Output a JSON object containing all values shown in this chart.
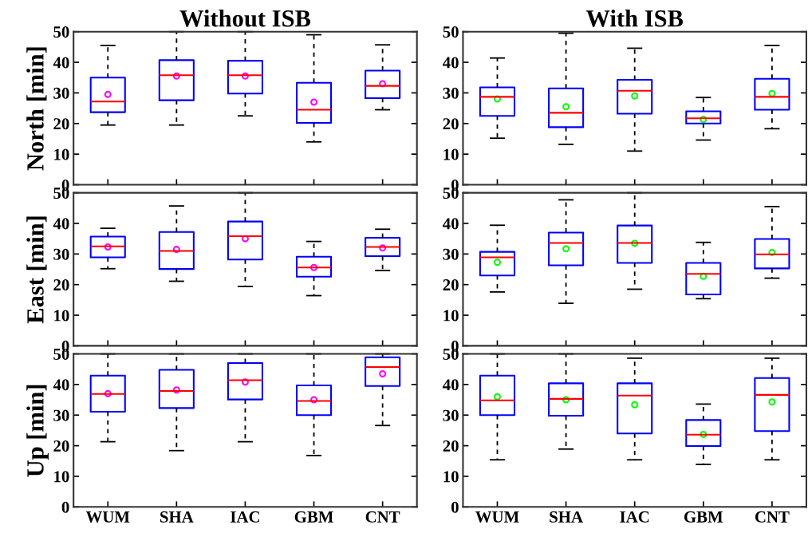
{
  "chart_data": [
    {
      "type": "box",
      "title": "Without ISB",
      "ylabel": "North [min]",
      "categories": [
        "WUM",
        "SHA",
        "IAC",
        "GBM",
        "CNT"
      ],
      "ylim": [
        0,
        50
      ],
      "yticks": [
        0,
        10,
        20,
        30,
        40,
        50
      ],
      "tick_labels": "y",
      "grid": false,
      "legend": false,
      "series": [
        {
          "color": "#0000ff",
          "boxes": [
            {
              "low": 19.5,
              "q1": 23.7,
              "median": 27.2,
              "q3": 35,
              "high": 45.5
            },
            {
              "low": 19.5,
              "q1": 27.6,
              "median": 35.8,
              "q3": 40.7,
              "high": 50
            },
            {
              "low": 22.5,
              "q1": 29.8,
              "median": 35.8,
              "q3": 40.5,
              "high": 50
            },
            {
              "low": 14,
              "q1": 20.2,
              "median": 24.5,
              "q3": 33.3,
              "high": 49
            },
            {
              "low": 24.5,
              "q1": 28.3,
              "median": 32.3,
              "q3": 37.3,
              "high": 45.7
            }
          ]
        },
        {
          "type": "scatter",
          "marker": "circle",
          "color": "#ff00ff",
          "x": [
            "WUM",
            "SHA",
            "IAC",
            "GBM",
            "CNT"
          ],
          "values": [
            29.5,
            35.5,
            35.5,
            27,
            33
          ]
        }
      ]
    },
    {
      "type": "box",
      "title": "With ISB",
      "categories": [
        "WUM",
        "SHA",
        "IAC",
        "GBM",
        "CNT"
      ],
      "ylim": [
        0,
        50
      ],
      "yticks": [
        0,
        10,
        20,
        30,
        40,
        50
      ],
      "tick_labels": "y",
      "grid": false,
      "legend": false,
      "series": [
        {
          "color": "#0000ff",
          "boxes": [
            {
              "low": 15.2,
              "q1": 22.5,
              "median": 28.7,
              "q3": 31.8,
              "high": 41.4
            },
            {
              "low": 13.2,
              "q1": 18.8,
              "median": 23.5,
              "q3": 31.5,
              "high": 49.5
            },
            {
              "low": 11,
              "q1": 23.2,
              "median": 30.7,
              "q3": 34.3,
              "high": 44.6
            },
            {
              "low": 14.6,
              "q1": 20,
              "median": 21.7,
              "q3": 24,
              "high": 28.5
            },
            {
              "low": 18.3,
              "q1": 24.5,
              "median": 28.7,
              "q3": 34.6,
              "high": 45.5
            }
          ]
        },
        {
          "type": "scatter",
          "marker": "circle",
          "color": "#00ff00",
          "x": [
            "WUM",
            "SHA",
            "IAC",
            "GBM",
            "CNT"
          ],
          "values": [
            28,
            25.5,
            29,
            21.3,
            29.8
          ]
        }
      ]
    },
    {
      "type": "box",
      "ylabel": "East [min]",
      "categories": [
        "WUM",
        "SHA",
        "IAC",
        "GBM",
        "CNT"
      ],
      "ylim": [
        0,
        50
      ],
      "yticks": [
        0,
        10,
        20,
        30,
        40,
        50
      ],
      "tick_labels": "y",
      "grid": false,
      "legend": false,
      "series": [
        {
          "color": "#0000ff",
          "boxes": [
            {
              "low": 25.2,
              "q1": 28.9,
              "median": 32.5,
              "q3": 35.7,
              "high": 38.4
            },
            {
              "low": 21.1,
              "q1": 25.1,
              "median": 31,
              "q3": 37.2,
              "high": 45.7
            },
            {
              "low": 19.4,
              "q1": 28.2,
              "median": 35.8,
              "q3": 40.6,
              "high": 50
            },
            {
              "low": 16.4,
              "q1": 22.6,
              "median": 25.6,
              "q3": 29.1,
              "high": 34.1
            },
            {
              "low": 24.6,
              "q1": 29.3,
              "median": 32.3,
              "q3": 35.3,
              "high": 38.1
            }
          ]
        },
        {
          "type": "scatter",
          "marker": "circle",
          "color": "#ff00ff",
          "x": [
            "WUM",
            "SHA",
            "IAC",
            "GBM",
            "CNT"
          ],
          "values": [
            32.3,
            31.5,
            35,
            25.6,
            32
          ]
        }
      ]
    },
    {
      "type": "box",
      "categories": [
        "WUM",
        "SHA",
        "IAC",
        "GBM",
        "CNT"
      ],
      "ylim": [
        0,
        50
      ],
      "yticks": [
        0,
        10,
        20,
        30,
        40,
        50
      ],
      "tick_labels": "y",
      "grid": false,
      "legend": false,
      "series": [
        {
          "color": "#0000ff",
          "boxes": [
            {
              "low": 17.6,
              "q1": 23,
              "median": 28.9,
              "q3": 30.7,
              "high": 39.4
            },
            {
              "low": 13.9,
              "q1": 26.3,
              "median": 33.6,
              "q3": 37,
              "high": 47.7
            },
            {
              "low": 18.5,
              "q1": 27.1,
              "median": 33.6,
              "q3": 39.3,
              "high": 50
            },
            {
              "low": 15.4,
              "q1": 16.8,
              "median": 23.5,
              "q3": 27.1,
              "high": 33.8
            },
            {
              "low": 22.1,
              "q1": 25.3,
              "median": 29.9,
              "q3": 34.9,
              "high": 45.5
            }
          ]
        },
        {
          "type": "scatter",
          "marker": "circle",
          "color": "#00ff00",
          "x": [
            "WUM",
            "SHA",
            "IAC",
            "GBM",
            "CNT"
          ],
          "values": [
            27.3,
            31.7,
            33.5,
            22.7,
            30.5
          ]
        }
      ]
    },
    {
      "type": "box",
      "ylabel": "Up [min]",
      "categories": [
        "WUM",
        "SHA",
        "IAC",
        "GBM",
        "CNT"
      ],
      "ylim": [
        0,
        50
      ],
      "yticks": [
        0,
        10,
        20,
        30,
        40,
        50
      ],
      "grid": false,
      "legend": false,
      "series": [
        {
          "color": "#0000ff",
          "boxes": [
            {
              "low": 21.3,
              "q1": 31.1,
              "median": 36.9,
              "q3": 42.9,
              "high": 50
            },
            {
              "low": 18.4,
              "q1": 32.3,
              "median": 37.9,
              "q3": 44.8,
              "high": 50
            },
            {
              "low": 21.3,
              "q1": 35.1,
              "median": 41.4,
              "q3": 47,
              "high": 50
            },
            {
              "low": 16.8,
              "q1": 30,
              "median": 34.6,
              "q3": 39.7,
              "high": 50
            },
            {
              "low": 26.6,
              "q1": 39.5,
              "median": 45.7,
              "q3": 48.9,
              "high": 50
            }
          ]
        },
        {
          "type": "scatter",
          "marker": "circle",
          "color": "#ff00ff",
          "x": [
            "WUM",
            "SHA",
            "IAC",
            "GBM",
            "CNT"
          ],
          "values": [
            37,
            38.2,
            40.8,
            35,
            43.5
          ]
        }
      ]
    },
    {
      "type": "box",
      "categories": [
        "WUM",
        "SHA",
        "IAC",
        "GBM",
        "CNT"
      ],
      "ylim": [
        0,
        50
      ],
      "yticks": [
        0,
        10,
        20,
        30,
        40,
        50
      ],
      "grid": false,
      "legend": false,
      "series": [
        {
          "color": "#0000ff",
          "boxes": [
            {
              "low": 15.4,
              "q1": 30,
              "median": 34.8,
              "q3": 42.9,
              "high": 50
            },
            {
              "low": 18.9,
              "q1": 29.8,
              "median": 35.3,
              "q3": 40.4,
              "high": 50
            },
            {
              "low": 15.4,
              "q1": 24,
              "median": 36.4,
              "q3": 40.4,
              "high": 48.6
            },
            {
              "low": 13.9,
              "q1": 19.9,
              "median": 23.6,
              "q3": 28.4,
              "high": 33.6
            },
            {
              "low": 15.4,
              "q1": 24.8,
              "median": 36.6,
              "q3": 42.1,
              "high": 48.6
            }
          ]
        },
        {
          "type": "scatter",
          "marker": "circle",
          "color": "#00ff00",
          "x": [
            "WUM",
            "SHA",
            "IAC",
            "GBM",
            "CNT"
          ],
          "values": [
            36,
            35,
            33.4,
            23.7,
            34.3
          ]
        }
      ]
    }
  ]
}
